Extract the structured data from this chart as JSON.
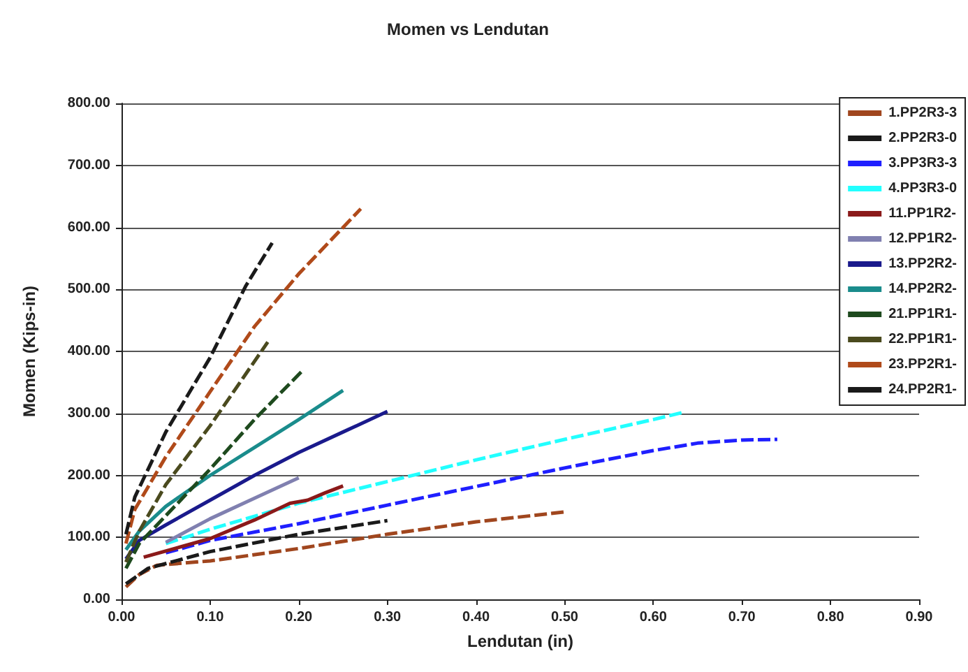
{
  "chart_data": {
    "type": "line",
    "title": "Momen vs Lendutan",
    "xlabel": "Lendutan (in)",
    "ylabel": "Momen (Kips-in)",
    "grid": "y",
    "legend": "right",
    "marker": "none",
    "xlim": [
      0,
      0.9
    ],
    "xticks": [
      {
        "value": 0,
        "label": "0.00"
      },
      {
        "value": 0.1,
        "label": "0.10"
      },
      {
        "value": 0.2,
        "label": "0.20"
      },
      {
        "value": 0.3,
        "label": "0.30"
      },
      {
        "value": 0.4,
        "label": "0.40"
      },
      {
        "value": 0.5,
        "label": "0.50"
      },
      {
        "value": 0.6,
        "label": "0.60"
      },
      {
        "value": 0.7,
        "label": "0.70"
      },
      {
        "value": 0.8,
        "label": "0.80"
      },
      {
        "value": 0.9,
        "label": "0.90"
      }
    ],
    "ylim": [
      0,
      800
    ],
    "yticks": [
      {
        "value": 0,
        "label": "0.00"
      },
      {
        "value": 100,
        "label": "100.00"
      },
      {
        "value": 200,
        "label": "200.00"
      },
      {
        "value": 300,
        "label": "300.00"
      },
      {
        "value": 400,
        "label": "400.00"
      },
      {
        "value": 500,
        "label": "500.00"
      },
      {
        "value": 600,
        "label": "600.00"
      },
      {
        "value": 700,
        "label": "700.00"
      },
      {
        "value": 800,
        "label": "800.00"
      }
    ],
    "series": [
      {
        "name": "1.PP2R3-3",
        "color": "#a0461e",
        "line_style": "dashed",
        "x": [
          0.005,
          0.02,
          0.04,
          0.1,
          0.2,
          0.3,
          0.4,
          0.5
        ],
        "values": [
          20,
          40,
          55,
          62,
          82,
          105,
          125,
          141
        ]
      },
      {
        "name": "2.PP2R3-0",
        "color": "#1a1a1a",
        "line_style": "dashed",
        "x": [
          0.005,
          0.03,
          0.1,
          0.2,
          0.3
        ],
        "values": [
          25,
          50,
          77,
          105,
          127
        ]
      },
      {
        "name": "3.PP3R3-3",
        "color": "#1f1fff",
        "line_style": "dashed",
        "x": [
          0.05,
          0.1,
          0.2,
          0.3,
          0.4,
          0.5,
          0.6,
          0.65,
          0.7,
          0.74
        ],
        "values": [
          75,
          95,
          122,
          152,
          182,
          212,
          240,
          252,
          257,
          258
        ]
      },
      {
        "name": "4.PP3R3-0",
        "color": "#22ffff",
        "line_style": "dashed",
        "x": [
          0.05,
          0.1,
          0.2,
          0.3,
          0.4,
          0.5,
          0.6,
          0.635
        ],
        "values": [
          90,
          113,
          155,
          190,
          225,
          258,
          290,
          302
        ]
      },
      {
        "name": "11.PP1R2-",
        "color": "#8b1a1a",
        "line_style": "solid",
        "x": [
          0.025,
          0.1,
          0.15,
          0.19,
          0.21,
          0.23,
          0.25
        ],
        "values": [
          68,
          98,
          128,
          155,
          160,
          172,
          183
        ]
      },
      {
        "name": "12.PP1R2-",
        "color": "#8080b0",
        "line_style": "solid",
        "x": [
          0.05,
          0.1,
          0.15,
          0.2
        ],
        "values": [
          92,
          130,
          163,
          196
        ]
      },
      {
        "name": "13.PP2R2-",
        "color": "#1a1a8c",
        "line_style": "solid",
        "x": [
          0.005,
          0.02,
          0.05,
          0.1,
          0.15,
          0.2,
          0.25,
          0.3
        ],
        "values": [
          65,
          95,
          120,
          160,
          200,
          237,
          270,
          303
        ]
      },
      {
        "name": "14.PP2R2-",
        "color": "#1a8c8c",
        "line_style": "solid",
        "x": [
          0.005,
          0.02,
          0.05,
          0.1,
          0.15,
          0.2,
          0.25
        ],
        "values": [
          80,
          110,
          150,
          200,
          245,
          290,
          337
        ]
      },
      {
        "name": "21.PP1R1-",
        "color": "#1e4a1e",
        "line_style": "dashed",
        "x": [
          0.005,
          0.02,
          0.05,
          0.1,
          0.15,
          0.205
        ],
        "values": [
          50,
          90,
          135,
          210,
          290,
          370
        ]
      },
      {
        "name": "22.PP1R1-",
        "color": "#4a4a1e",
        "line_style": "dashed",
        "x": [
          0.005,
          0.02,
          0.05,
          0.1,
          0.165
        ],
        "values": [
          60,
          110,
          185,
          280,
          415
        ]
      },
      {
        "name": "23.PP2R1-",
        "color": "#b04a1a",
        "line_style": "dashed",
        "x": [
          0.005,
          0.015,
          0.05,
          0.1,
          0.15,
          0.2,
          0.27
        ],
        "values": [
          90,
          145,
          230,
          335,
          440,
          525,
          630
        ]
      },
      {
        "name": "24.PP2R1-",
        "color": "#1a1a1a",
        "line_style": "dashed",
        "x": [
          0.005,
          0.015,
          0.05,
          0.1,
          0.14,
          0.17
        ],
        "values": [
          105,
          165,
          270,
          390,
          505,
          575
        ]
      }
    ]
  }
}
